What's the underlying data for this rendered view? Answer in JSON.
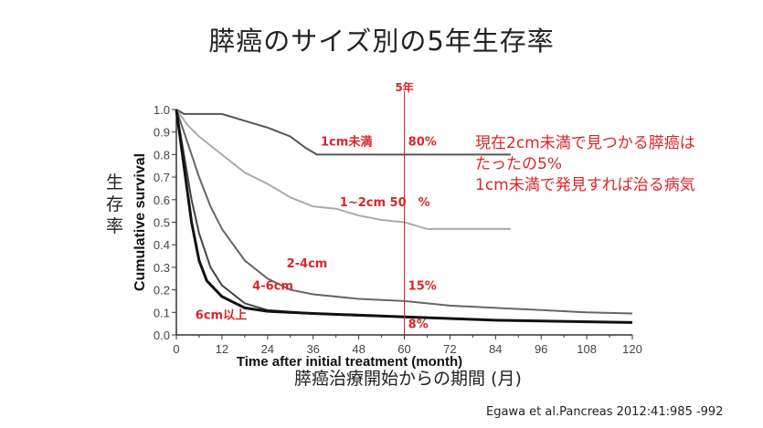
{
  "slide": {
    "title": "膵癌のサイズ別の5年生存率",
    "note_lines": [
      "現在2cm未満で見つかる膵癌は",
      "たったの5%",
      "1cm未満で発見すれば治る病気"
    ],
    "ylabel_jp": "生存率",
    "xlabel_jp": "膵癌治療開始からの期間 (月)",
    "citation": "Egawa et al.Pancreas 2012:41:985 -992"
  },
  "chart_data": {
    "type": "line",
    "xlabel": "Time after initial treatment (month)",
    "ylabel": "Cumulative survival",
    "xlim": [
      0,
      120
    ],
    "ylim": [
      0,
      1.0
    ],
    "xticks": [
      "0",
      "12",
      "24",
      "36",
      "48",
      "60",
      "72",
      "84",
      "96",
      "108",
      "120"
    ],
    "yticks": [
      "0.0",
      "0.1",
      "0.2",
      "0.3",
      "0.4",
      "0.5",
      "0.6",
      "0.7",
      "0.8",
      "0.9",
      "1.0"
    ],
    "grid": false,
    "marker_line": {
      "x": 60,
      "label": "5年",
      "color": "#d9262a"
    },
    "series": [
      {
        "name": "1cm未満",
        "color": "#555555",
        "points": [
          [
            0,
            1
          ],
          [
            2,
            0.98
          ],
          [
            12,
            0.98
          ],
          [
            18,
            0.95
          ],
          [
            24,
            0.92
          ],
          [
            30,
            0.88
          ],
          [
            34,
            0.83
          ],
          [
            37,
            0.8
          ],
          [
            88,
            0.8
          ]
        ]
      },
      {
        "name": "1~2cm",
        "color": "#aaaaaa",
        "points": [
          [
            0,
            1
          ],
          [
            3,
            0.93
          ],
          [
            6,
            0.88
          ],
          [
            12,
            0.8
          ],
          [
            18,
            0.72
          ],
          [
            24,
            0.67
          ],
          [
            30,
            0.61
          ],
          [
            36,
            0.57
          ],
          [
            42,
            0.56
          ],
          [
            48,
            0.53
          ],
          [
            54,
            0.51
          ],
          [
            60,
            0.5
          ],
          [
            64,
            0.48
          ],
          [
            66,
            0.47
          ],
          [
            88,
            0.47
          ]
        ]
      },
      {
        "name": "2-4cm",
        "color": "#666666",
        "points": [
          [
            0,
            1
          ],
          [
            3,
            0.85
          ],
          [
            6,
            0.7
          ],
          [
            9,
            0.57
          ],
          [
            12,
            0.47
          ],
          [
            18,
            0.33
          ],
          [
            24,
            0.25
          ],
          [
            30,
            0.2
          ],
          [
            36,
            0.18
          ],
          [
            48,
            0.16
          ],
          [
            60,
            0.15
          ],
          [
            72,
            0.13
          ],
          [
            84,
            0.12
          ],
          [
            96,
            0.11
          ],
          [
            108,
            0.1
          ],
          [
            120,
            0.095
          ]
        ]
      },
      {
        "name": "4-6cm",
        "color": "#444444",
        "points": [
          [
            0,
            1
          ],
          [
            2,
            0.8
          ],
          [
            4,
            0.6
          ],
          [
            6,
            0.45
          ],
          [
            9,
            0.3
          ],
          [
            12,
            0.22
          ],
          [
            18,
            0.14
          ],
          [
            24,
            0.11
          ],
          [
            36,
            0.095
          ],
          [
            48,
            0.085
          ],
          [
            60,
            0.08
          ],
          [
            84,
            0.065
          ],
          [
            120,
            0.055
          ]
        ]
      },
      {
        "name": "6cm以上",
        "color": "#111111",
        "points": [
          [
            0,
            1
          ],
          [
            2,
            0.75
          ],
          [
            4,
            0.5
          ],
          [
            6,
            0.33
          ],
          [
            8,
            0.24
          ],
          [
            12,
            0.17
          ],
          [
            18,
            0.12
          ],
          [
            24,
            0.105
          ],
          [
            36,
            0.095
          ],
          [
            60,
            0.08
          ],
          [
            84,
            0.065
          ],
          [
            120,
            0.055
          ]
        ]
      }
    ],
    "annotations": [
      {
        "text": "1cm未満",
        "x": 38,
        "y": 0.84
      },
      {
        "text": "80%",
        "x": 61,
        "y": 0.84
      },
      {
        "text": "1~2cm 50　%",
        "x": 43,
        "y": 0.57
      },
      {
        "text": "2-4cm",
        "x": 29,
        "y": 0.3
      },
      {
        "text": "4-6cm",
        "x": 20,
        "y": 0.2
      },
      {
        "text": "15%",
        "x": 61,
        "y": 0.2
      },
      {
        "text": "6cm以上",
        "x": 5,
        "y": 0.07
      },
      {
        "text": "8%",
        "x": 61,
        "y": 0.03
      }
    ]
  }
}
